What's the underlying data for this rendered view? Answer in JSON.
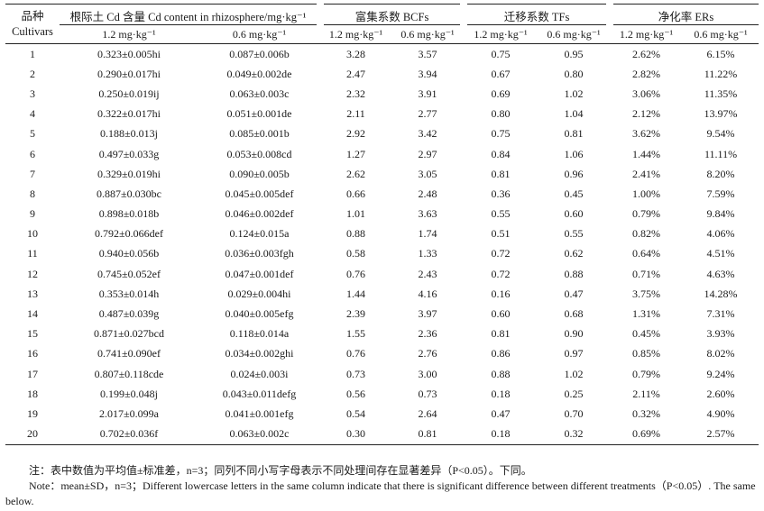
{
  "headers": {
    "cultivar_zh": "品种",
    "cultivar_en": "Cultivars",
    "rhizo": "根际土 Cd 含量 Cd content in rhizosphere/mg·kg⁻¹",
    "bcf": "富集系数 BCFs",
    "tf": "迁移系数 TFs",
    "er": "净化率 ERs",
    "sub_high": "1.2 mg·kg⁻¹",
    "sub_low": "0.6 mg·kg⁻¹"
  },
  "rows": [
    {
      "id": "1",
      "rhizo_high": "0.323±0.005hi",
      "rhizo_low": "0.087±0.006b",
      "bcf_high": "3.28",
      "bcf_low": "3.57",
      "tf_high": "0.75",
      "tf_low": "0.95",
      "er_high": "2.62%",
      "er_low": "6.15%"
    },
    {
      "id": "2",
      "rhizo_high": "0.290±0.017hi",
      "rhizo_low": "0.049±0.002de",
      "bcf_high": "2.47",
      "bcf_low": "3.94",
      "tf_high": "0.67",
      "tf_low": "0.80",
      "er_high": "2.82%",
      "er_low": "11.22%"
    },
    {
      "id": "3",
      "rhizo_high": "0.250±0.019ij",
      "rhizo_low": "0.063±0.003c",
      "bcf_high": "2.32",
      "bcf_low": "3.91",
      "tf_high": "0.69",
      "tf_low": "1.02",
      "er_high": "3.06%",
      "er_low": "11.35%"
    },
    {
      "id": "4",
      "rhizo_high": "0.322±0.017hi",
      "rhizo_low": "0.051±0.001de",
      "bcf_high": "2.11",
      "bcf_low": "2.77",
      "tf_high": "0.80",
      "tf_low": "1.04",
      "er_high": "2.12%",
      "er_low": "13.97%"
    },
    {
      "id": "5",
      "rhizo_high": "0.188±0.013j",
      "rhizo_low": "0.085±0.001b",
      "bcf_high": "2.92",
      "bcf_low": "3.42",
      "tf_high": "0.75",
      "tf_low": "0.81",
      "er_high": "3.62%",
      "er_low": "9.54%"
    },
    {
      "id": "6",
      "rhizo_high": "0.497±0.033g",
      "rhizo_low": "0.053±0.008cd",
      "bcf_high": "1.27",
      "bcf_low": "2.97",
      "tf_high": "0.84",
      "tf_low": "1.06",
      "er_high": "1.44%",
      "er_low": "11.11%"
    },
    {
      "id": "7",
      "rhizo_high": "0.329±0.019hi",
      "rhizo_low": "0.090±0.005b",
      "bcf_high": "2.62",
      "bcf_low": "3.05",
      "tf_high": "0.81",
      "tf_low": "0.96",
      "er_high": "2.41%",
      "er_low": "8.20%"
    },
    {
      "id": "8",
      "rhizo_high": "0.887±0.030bc",
      "rhizo_low": "0.045±0.005def",
      "bcf_high": "0.66",
      "bcf_low": "2.48",
      "tf_high": "0.36",
      "tf_low": "0.45",
      "er_high": "1.00%",
      "er_low": "7.59%"
    },
    {
      "id": "9",
      "rhizo_high": "0.898±0.018b",
      "rhizo_low": "0.046±0.002def",
      "bcf_high": "1.01",
      "bcf_low": "3.63",
      "tf_high": "0.55",
      "tf_low": "0.60",
      "er_high": "0.79%",
      "er_low": "9.84%"
    },
    {
      "id": "10",
      "rhizo_high": "0.792±0.066def",
      "rhizo_low": "0.124±0.015a",
      "bcf_high": "0.88",
      "bcf_low": "1.74",
      "tf_high": "0.51",
      "tf_low": "0.55",
      "er_high": "0.82%",
      "er_low": "4.06%"
    },
    {
      "id": "11",
      "rhizo_high": "0.940±0.056b",
      "rhizo_low": "0.036±0.003fgh",
      "bcf_high": "0.58",
      "bcf_low": "1.33",
      "tf_high": "0.72",
      "tf_low": "0.62",
      "er_high": "0.64%",
      "er_low": "4.51%"
    },
    {
      "id": "12",
      "rhizo_high": "0.745±0.052ef",
      "rhizo_low": "0.047±0.001def",
      "bcf_high": "0.76",
      "bcf_low": "2.43",
      "tf_high": "0.72",
      "tf_low": "0.88",
      "er_high": "0.71%",
      "er_low": "4.63%"
    },
    {
      "id": "13",
      "rhizo_high": "0.353±0.014h",
      "rhizo_low": "0.029±0.004hi",
      "bcf_high": "1.44",
      "bcf_low": "4.16",
      "tf_high": "0.16",
      "tf_low": "0.47",
      "er_high": "3.75%",
      "er_low": "14.28%"
    },
    {
      "id": "14",
      "rhizo_high": "0.487±0.039g",
      "rhizo_low": "0.040±0.005efg",
      "bcf_high": "2.39",
      "bcf_low": "3.97",
      "tf_high": "0.60",
      "tf_low": "0.68",
      "er_high": "1.31%",
      "er_low": "7.31%"
    },
    {
      "id": "15",
      "rhizo_high": "0.871±0.027bcd",
      "rhizo_low": "0.118±0.014a",
      "bcf_high": "1.55",
      "bcf_low": "2.36",
      "tf_high": "0.81",
      "tf_low": "0.90",
      "er_high": "0.45%",
      "er_low": "3.93%"
    },
    {
      "id": "16",
      "rhizo_high": "0.741±0.090ef",
      "rhizo_low": "0.034±0.002ghi",
      "bcf_high": "0.76",
      "bcf_low": "2.76",
      "tf_high": "0.86",
      "tf_low": "0.97",
      "er_high": "0.85%",
      "er_low": "8.02%"
    },
    {
      "id": "17",
      "rhizo_high": "0.807±0.118cde",
      "rhizo_low": "0.024±0.003i",
      "bcf_high": "0.73",
      "bcf_low": "3.00",
      "tf_high": "0.88",
      "tf_low": "1.02",
      "er_high": "0.79%",
      "er_low": "9.24%"
    },
    {
      "id": "18",
      "rhizo_high": "0.199±0.048j",
      "rhizo_low": "0.043±0.011defg",
      "bcf_high": "0.56",
      "bcf_low": "0.73",
      "tf_high": "0.18",
      "tf_low": "0.25",
      "er_high": "2.11%",
      "er_low": "2.60%"
    },
    {
      "id": "19",
      "rhizo_high": "2.017±0.099a",
      "rhizo_low": "0.041±0.001efg",
      "bcf_high": "0.54",
      "bcf_low": "2.64",
      "tf_high": "0.47",
      "tf_low": "0.70",
      "er_high": "0.32%",
      "er_low": "4.90%"
    },
    {
      "id": "20",
      "rhizo_high": "0.702±0.036f",
      "rhizo_low": "0.063±0.002c",
      "bcf_high": "0.30",
      "bcf_low": "0.81",
      "tf_high": "0.18",
      "tf_low": "0.32",
      "er_high": "0.69%",
      "er_low": "2.57%"
    }
  ],
  "notes": {
    "zh": "注：表中数值为平均值±标准差，n=3；同列不同小写字母表示不同处理间存在显著差异（P<0.05）。下同。",
    "en": "Note：mean±SD，n=3；Different lowercase letters in the same column indicate that there is significant difference between different treatments（P<0.05）. The same below."
  }
}
